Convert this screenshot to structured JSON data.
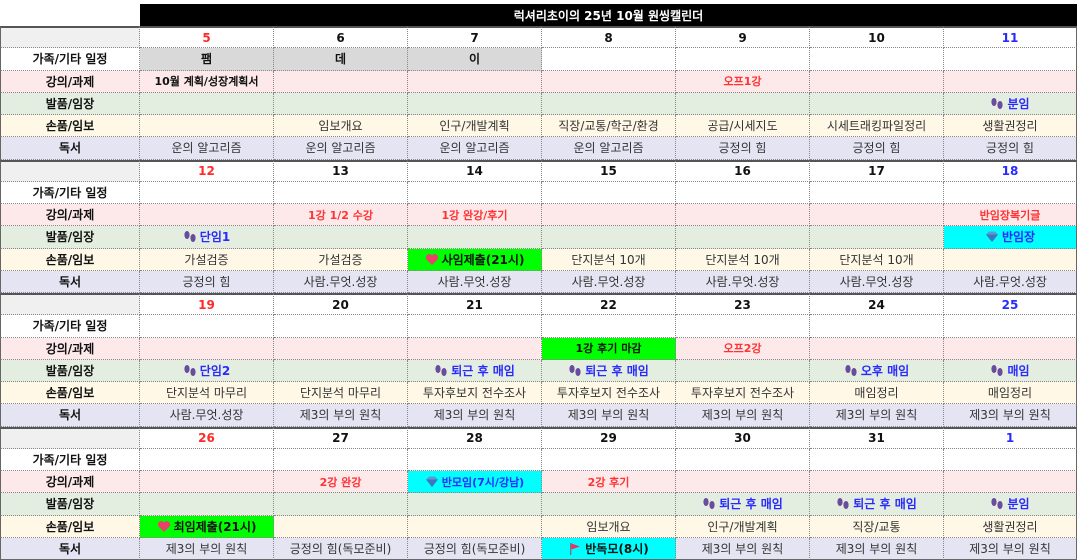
{
  "title": "럭셔리초이의 25년 10월 원씽캘린더",
  "row_labels": [
    "가족/기타 일정",
    "강의/과제",
    "발품/임장",
    "손품/임보",
    "독서"
  ],
  "colors": {
    "sunday": "#ff2a2a",
    "saturday": "#2a2aff",
    "highlight_green": "#00ff00",
    "highlight_cyan": "#00ffff"
  },
  "weeks": [
    {
      "dates": [
        "5",
        "6",
        "7",
        "8",
        "9",
        "10",
        "11"
      ],
      "rows": [
        [
          {
            "t": "팸",
            "bg": "#d9d9d9"
          },
          {
            "t": "데",
            "bg": "#d9d9d9"
          },
          {
            "t": "이",
            "bg": "#d9d9d9"
          },
          {
            "t": ""
          },
          {
            "t": ""
          },
          {
            "t": ""
          },
          {
            "t": ""
          }
        ],
        [
          {
            "t": "10월 계획/성장계획서",
            "color": "#111"
          },
          {
            "t": ""
          },
          {
            "t": ""
          },
          {
            "t": ""
          },
          {
            "t": "오프1강"
          },
          {
            "t": ""
          },
          {
            "t": ""
          }
        ],
        [
          {
            "t": ""
          },
          {
            "t": ""
          },
          {
            "t": ""
          },
          {
            "t": ""
          },
          {
            "t": ""
          },
          {
            "t": ""
          },
          {
            "t": "분임",
            "icon": "footprints-icon"
          }
        ],
        [
          {
            "t": ""
          },
          {
            "t": "임보개요"
          },
          {
            "t": "인구/개발계획"
          },
          {
            "t": "직장/교통/학군/환경"
          },
          {
            "t": "공급/시세지도"
          },
          {
            "t": "시세트래킹파일정리"
          },
          {
            "t": "생활권정리"
          }
        ],
        [
          {
            "t": "운의 알고리즘"
          },
          {
            "t": "운의 알고리즘"
          },
          {
            "t": "운의 알고리즘"
          },
          {
            "t": "운의 알고리즘"
          },
          {
            "t": "긍정의 힘"
          },
          {
            "t": "긍정의 힘"
          },
          {
            "t": "긍정의 힘"
          }
        ]
      ]
    },
    {
      "dates": [
        "12",
        "13",
        "14",
        "15",
        "16",
        "17",
        "18"
      ],
      "rows": [
        [
          {
            "t": ""
          },
          {
            "t": ""
          },
          {
            "t": ""
          },
          {
            "t": ""
          },
          {
            "t": ""
          },
          {
            "t": ""
          },
          {
            "t": ""
          }
        ],
        [
          {
            "t": ""
          },
          {
            "t": "1강 1/2 수강"
          },
          {
            "t": "1강 완강/후기"
          },
          {
            "t": ""
          },
          {
            "t": ""
          },
          {
            "t": ""
          },
          {
            "t": "반임장복기글"
          }
        ],
        [
          {
            "t": "단임1",
            "icon": "footprints-icon"
          },
          {
            "t": ""
          },
          {
            "t": ""
          },
          {
            "t": ""
          },
          {
            "t": ""
          },
          {
            "t": ""
          },
          {
            "t": "반임장",
            "icon": "diamond-icon",
            "bg": "#00ffff"
          }
        ],
        [
          {
            "t": "가설검증"
          },
          {
            "t": "가설검증"
          },
          {
            "t": "사임제출(21시)",
            "icon": "heart-icon",
            "bg": "#00ff00",
            "bold": true
          },
          {
            "t": "단지분석 10개"
          },
          {
            "t": "단지분석 10개"
          },
          {
            "t": "단지분석 10개"
          },
          {
            "t": ""
          }
        ],
        [
          {
            "t": "긍정의 힘"
          },
          {
            "t": "사람.무엇.성장"
          },
          {
            "t": "사람.무엇.성장"
          },
          {
            "t": "사람.무엇.성장"
          },
          {
            "t": "사람.무엇.성장"
          },
          {
            "t": "사람.무엇.성장"
          },
          {
            "t": "사람.무엇.성장"
          }
        ]
      ]
    },
    {
      "dates": [
        "19",
        "20",
        "21",
        "22",
        "23",
        "24",
        "25"
      ],
      "rows": [
        [
          {
            "t": ""
          },
          {
            "t": ""
          },
          {
            "t": ""
          },
          {
            "t": ""
          },
          {
            "t": ""
          },
          {
            "t": ""
          },
          {
            "t": ""
          }
        ],
        [
          {
            "t": ""
          },
          {
            "t": ""
          },
          {
            "t": ""
          },
          {
            "t": "1강 후기 마감",
            "bg": "#00ff00",
            "color": "#111"
          },
          {
            "t": "오프2강"
          },
          {
            "t": ""
          },
          {
            "t": ""
          }
        ],
        [
          {
            "t": "단임2",
            "icon": "footprints-icon"
          },
          {
            "t": ""
          },
          {
            "t": "퇴근 후 매임",
            "icon": "footprints-icon"
          },
          {
            "t": "퇴근 후 매임",
            "icon": "footprints-icon"
          },
          {
            "t": ""
          },
          {
            "t": "오후 매임",
            "icon": "footprints-icon"
          },
          {
            "t": "매임",
            "icon": "footprints-icon"
          }
        ],
        [
          {
            "t": "단지분석 마무리"
          },
          {
            "t": "단지분석 마무리"
          },
          {
            "t": "투자후보지 전수조사"
          },
          {
            "t": "투자후보지 전수조사"
          },
          {
            "t": "투자후보지 전수조사"
          },
          {
            "t": "매임정리"
          },
          {
            "t": "매임정리"
          }
        ],
        [
          {
            "t": "사람.무엇.성장"
          },
          {
            "t": "제3의 부의 원칙"
          },
          {
            "t": "제3의 부의 원칙"
          },
          {
            "t": "제3의 부의 원칙"
          },
          {
            "t": "제3의 부의 원칙"
          },
          {
            "t": "제3의 부의 원칙"
          },
          {
            "t": "제3의 부의 원칙"
          }
        ]
      ]
    },
    {
      "dates": [
        "26",
        "27",
        "28",
        "29",
        "30",
        "31",
        "1"
      ],
      "rows": [
        [
          {
            "t": ""
          },
          {
            "t": ""
          },
          {
            "t": ""
          },
          {
            "t": ""
          },
          {
            "t": ""
          },
          {
            "t": ""
          },
          {
            "t": ""
          }
        ],
        [
          {
            "t": ""
          },
          {
            "t": "2강 완강"
          },
          {
            "t": "반모임(7시/강남)",
            "icon": "diamond-icon",
            "bg": "#00ffff",
            "color": "#2a2aff"
          },
          {
            "t": "2강 후기"
          },
          {
            "t": ""
          },
          {
            "t": ""
          },
          {
            "t": ""
          }
        ],
        [
          {
            "t": ""
          },
          {
            "t": ""
          },
          {
            "t": ""
          },
          {
            "t": ""
          },
          {
            "t": "퇴근 후 매임",
            "icon": "footprints-icon"
          },
          {
            "t": "퇴근 후 매임",
            "icon": "footprints-icon"
          },
          {
            "t": "분임",
            "icon": "footprints-icon"
          }
        ],
        [
          {
            "t": "최임제출(21시)",
            "icon": "heart-icon",
            "bg": "#00ff00",
            "bold": true
          },
          {
            "t": ""
          },
          {
            "t": ""
          },
          {
            "t": "임보개요"
          },
          {
            "t": "인구/개발계획"
          },
          {
            "t": "직장/교통"
          },
          {
            "t": "생활권정리"
          }
        ],
        [
          {
            "t": "제3의 부의 원칙"
          },
          {
            "t": "긍정의 힘(독모준비)"
          },
          {
            "t": "긍정의 힘(독모준비)"
          },
          {
            "t": "반독모(8시)",
            "icon": "flag-icon",
            "bg": "#00ffff",
            "bold": true
          },
          {
            "t": "제3의 부의 원칙"
          },
          {
            "t": "제3의 부의 원칙"
          },
          {
            "t": "제3의 부의 원칙"
          }
        ]
      ]
    }
  ]
}
